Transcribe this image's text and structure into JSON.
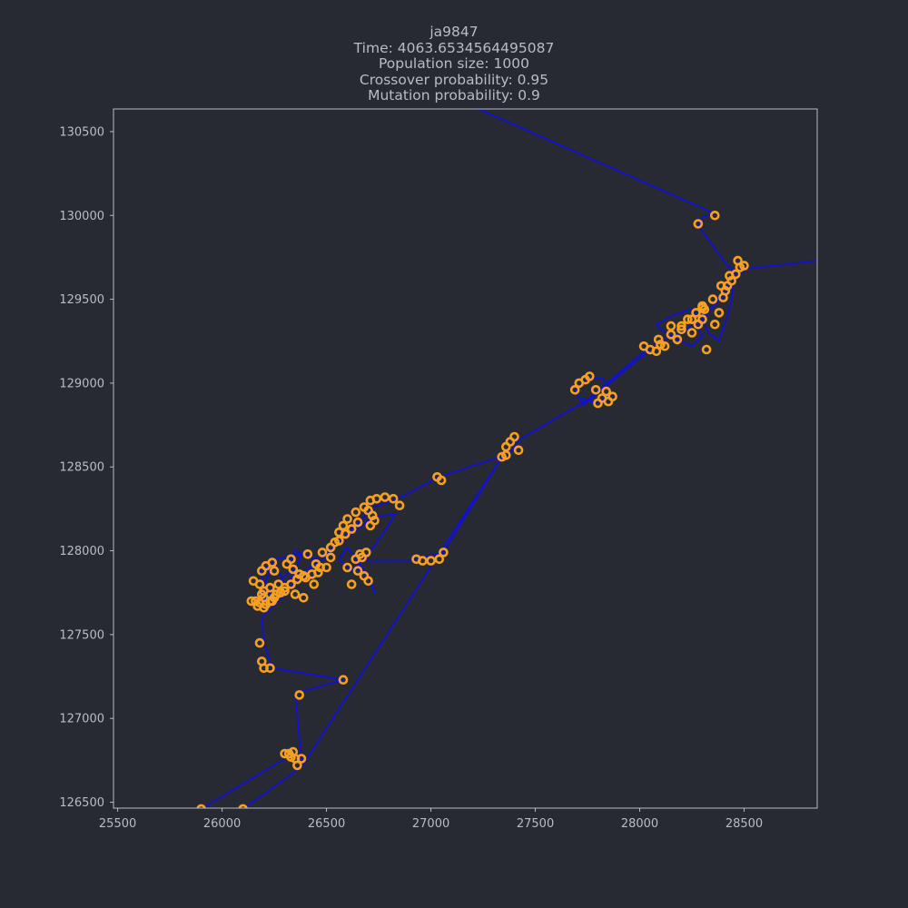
{
  "title_lines": [
    "ja9847",
    "Time: 4063.6534564495087",
    "Population size: 1000",
    "Crossover probability: 0.95",
    "Mutation probability: 0.9"
  ],
  "colors": {
    "background": "#272a33",
    "frame": "#b9bcc4",
    "text": "#b9bcc4",
    "route": "#1010d8",
    "cities": "#f5a020"
  },
  "chart_data": {
    "type": "line",
    "xlim": [
      25480,
      28850
    ],
    "ylim": [
      126465,
      130635
    ],
    "xticks": [
      25500,
      26000,
      26500,
      27000,
      27500,
      28000,
      28500
    ],
    "yticks": [
      126500,
      127000,
      127500,
      128000,
      128500,
      129000,
      129500,
      130000,
      130500
    ],
    "grid": false,
    "series": [
      {
        "kind": "route",
        "x": [
          25900,
          26340,
          26380,
          26350,
          26580,
          26240,
          26200,
          26190,
          26270,
          26200,
          26180,
          26260,
          26300,
          26340,
          26380,
          26250,
          26220,
          26190,
          26180,
          26210,
          26230,
          26250,
          26280,
          26340,
          26320,
          26350,
          26390,
          26440,
          26510,
          26560,
          26620,
          26670,
          26700,
          26740,
          26800,
          26840,
          27040,
          27380,
          27420,
          27750,
          28050,
          28200,
          28300,
          28420,
          28500,
          28850
        ],
        "y": [
          126460,
          126790,
          126750,
          127150,
          127230,
          127300,
          127450,
          127600,
          127700,
          127780,
          127900,
          127910,
          127800,
          127850,
          127980,
          127950,
          127860,
          127740,
          127680,
          127720,
          127760,
          127800,
          127830,
          127890,
          127920,
          128000,
          127980,
          127950,
          127990,
          128060,
          128130,
          128190,
          128230,
          128270,
          128290,
          128310,
          128440,
          128580,
          128660,
          128900,
          129220,
          129300,
          129400,
          129540,
          129680,
          129730
        ]
      },
      {
        "kind": "route",
        "x": [
          26100,
          26380,
          27340,
          27060,
          26930,
          26900,
          26700,
          26680,
          26650,
          26700,
          26730,
          26710,
          26640,
          26600,
          26560,
          26620,
          26700,
          26780,
          26830,
          26720,
          26630,
          26560,
          26500,
          26440,
          26400,
          26360,
          26320,
          26280
        ],
        "y": [
          126460,
          126710,
          128560,
          127990,
          127950,
          127940,
          127940,
          127960,
          127890,
          127850,
          127750,
          127830,
          127950,
          128020,
          127950,
          127880,
          127980,
          128120,
          128220,
          128200,
          128110,
          128050,
          127960,
          127920,
          127880,
          127820,
          127780,
          127700
        ]
      },
      {
        "kind": "route",
        "x": [
          27700,
          27790,
          27870,
          27820,
          27740,
          27690,
          27730,
          28050
        ],
        "y": [
          128920,
          128880,
          128940,
          129030,
          129020,
          128950,
          128870,
          129200
        ]
      },
      {
        "kind": "route",
        "x": [
          27200,
          28360,
          28300,
          28280,
          28420,
          28460,
          28420,
          28400,
          28360,
          28320,
          28270,
          28300,
          28250,
          28180,
          28100,
          28080,
          28150,
          28240,
          28300,
          28330,
          28380,
          28420,
          28440,
          28450
        ],
        "y": [
          130650,
          130010,
          129990,
          129940,
          129700,
          129660,
          129600,
          129540,
          129480,
          129410,
          129350,
          129280,
          129220,
          129260,
          129320,
          129350,
          129400,
          129440,
          129380,
          129300,
          129250,
          129400,
          129500,
          129620
        ]
      },
      {
        "kind": "cities",
        "x": [
          25900,
          26100,
          26300,
          26320,
          26350,
          26360,
          26380,
          26340,
          26330,
          26370,
          26580,
          26200,
          26230,
          26190,
          26180,
          26240,
          26200,
          26170,
          26160,
          26190,
          26230,
          26250,
          26200,
          26180,
          26150,
          26140,
          26190,
          26210,
          26240,
          26270,
          26300,
          26330,
          26360,
          26390,
          26410,
          26330,
          26310,
          26340,
          26370,
          26400,
          26250,
          26280,
          26230,
          26200,
          26180,
          26210,
          26260,
          26300,
          26350,
          26390,
          26440,
          26460,
          26500,
          26520,
          26480,
          26450,
          26430,
          26470,
          26520,
          26560,
          26590,
          26620,
          26650,
          26580,
          26560,
          26540,
          26600,
          26640,
          26680,
          26710,
          26740,
          26780,
          26820,
          26850,
          26700,
          26720,
          26730,
          26710,
          26690,
          26670,
          26650,
          26680,
          26700,
          26620,
          26600,
          26640,
          26660,
          26930,
          26960,
          27000,
          27040,
          27060,
          27030,
          27050,
          27340,
          27360,
          27380,
          27400,
          27420,
          27360,
          27690,
          27710,
          27740,
          27760,
          27790,
          27820,
          27850,
          27870,
          27840,
          27800,
          28020,
          28050,
          28080,
          28100,
          28150,
          28200,
          28250,
          28280,
          28300,
          28310,
          28320,
          28360,
          28380,
          28400,
          28410,
          28420,
          28440,
          28460,
          28480,
          28500,
          28470,
          28430,
          28390,
          28350,
          28300,
          28270,
          28250,
          28200,
          28180,
          28120,
          28090,
          28150,
          28230,
          28300,
          28360,
          28280
        ],
        "y": [
          126460,
          126460,
          126790,
          126790,
          126760,
          126720,
          126760,
          126800,
          126770,
          127140,
          127230,
          127300,
          127300,
          127340,
          127450,
          127700,
          127760,
          127670,
          127700,
          127740,
          127780,
          127720,
          127660,
          127800,
          127820,
          127700,
          127880,
          127910,
          127930,
          127800,
          127760,
          127800,
          127830,
          127850,
          127980,
          127950,
          127920,
          127890,
          127860,
          127840,
          127880,
          127750,
          127700,
          127720,
          127690,
          127680,
          127740,
          127780,
          127740,
          127720,
          127800,
          127870,
          127900,
          127960,
          127990,
          127920,
          127860,
          127900,
          128020,
          128060,
          128100,
          128130,
          128170,
          128150,
          128110,
          128050,
          128190,
          128230,
          128260,
          128300,
          128310,
          128320,
          128310,
          128270,
          128240,
          128210,
          128180,
          128150,
          127990,
          127960,
          127880,
          127850,
          127820,
          127800,
          127900,
          127950,
          127980,
          127950,
          127940,
          127940,
          127950,
          127990,
          128440,
          128420,
          128560,
          128620,
          128650,
          128680,
          128600,
          128570,
          128960,
          129000,
          129020,
          129040,
          128960,
          128910,
          128890,
          128920,
          128950,
          128880,
          129220,
          129200,
          129190,
          129230,
          129290,
          129320,
          129300,
          129350,
          129380,
          129440,
          129200,
          129350,
          129420,
          129510,
          129550,
          129580,
          129610,
          129650,
          129690,
          129700,
          129730,
          129640,
          129580,
          129500,
          129460,
          129420,
          129380,
          129340,
          129260,
          129220,
          129260,
          129340,
          129380,
          129450,
          130000,
          129950
        ]
      }
    ]
  }
}
